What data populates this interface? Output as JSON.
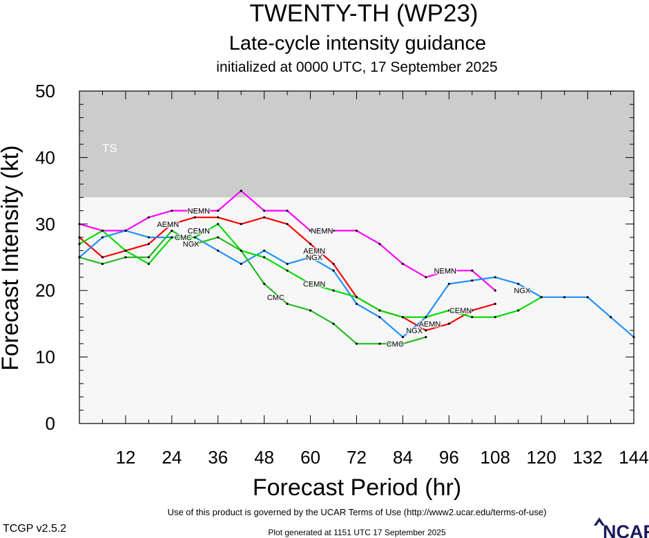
{
  "chart_data": {
    "type": "line",
    "title": "TWENTY-TH (WP23)",
    "subtitle": "Late-cycle intensity guidance",
    "initialized": "initialized at 0000 UTC, 17 September 2025",
    "xlabel": "Forecast Period (hr)",
    "ylabel": "Forecast Intensity (kt)",
    "xlim": [
      0,
      144
    ],
    "ylim": [
      0,
      50
    ],
    "x_ticks": [
      "12",
      "24",
      "36",
      "48",
      "60",
      "72",
      "84",
      "96",
      "108",
      "120",
      "132",
      "144"
    ],
    "y_ticks": [
      "0",
      "10",
      "20",
      "30",
      "40",
      "50"
    ],
    "bands": [
      {
        "label": "TS",
        "from": 34,
        "to": 50,
        "color": "#cccccc"
      },
      {
        "label": "",
        "from": 0,
        "to": 34,
        "color": "#f7f7f7"
      }
    ],
    "series": [
      {
        "name": "NEMN",
        "color": "#ff00ff",
        "x": [
          0,
          6,
          12,
          18,
          24,
          30,
          36,
          42,
          48,
          54,
          60,
          66,
          72,
          78,
          84,
          90,
          96,
          102,
          108
        ],
        "y": [
          30,
          29,
          29,
          31,
          32,
          32,
          32,
          35,
          32,
          32,
          29,
          29,
          29,
          27,
          24,
          22,
          23,
          23,
          20
        ],
        "labels": [
          {
            "x": 31,
            "y": 32
          },
          {
            "x": 63,
            "y": 29
          },
          {
            "x": 95,
            "y": 23
          }
        ]
      },
      {
        "name": "AEMN",
        "color": "#ff0000",
        "x": [
          0,
          6,
          12,
          18,
          24,
          30,
          36,
          42,
          48,
          54,
          60,
          66,
          72,
          78,
          84,
          90,
          96,
          102,
          108
        ],
        "y": [
          28,
          25,
          26,
          27,
          30,
          31,
          31,
          30,
          31,
          30,
          27,
          24,
          19,
          17,
          16,
          14,
          15,
          17,
          18
        ],
        "labels": [
          {
            "x": 23,
            "y": 30
          },
          {
            "x": 61,
            "y": 26
          },
          {
            "x": 91,
            "y": 15
          }
        ]
      },
      {
        "name": "NGX",
        "color": "#1e90ff",
        "x": [
          0,
          6,
          12,
          18,
          24,
          30,
          36,
          42,
          48,
          54,
          60,
          66,
          72,
          78,
          84,
          90,
          96,
          102,
          108,
          114,
          120,
          126,
          132,
          138,
          144
        ],
        "y": [
          25,
          28,
          29,
          28,
          28,
          28,
          26,
          24,
          26,
          24,
          25,
          23,
          18,
          16,
          13,
          16,
          21,
          21.5,
          22,
          21,
          19,
          19,
          19,
          16,
          13
        ],
        "labels": [
          {
            "x": 29,
            "y": 27
          },
          {
            "x": 61,
            "y": 25
          },
          {
            "x": 87,
            "y": 14
          },
          {
            "x": 115,
            "y": 20
          }
        ]
      },
      {
        "name": "CEMN",
        "color": "#00dd00",
        "x": [
          0,
          6,
          12,
          18,
          24,
          30,
          36,
          42,
          48,
          54,
          60,
          66,
          72,
          78,
          84,
          90,
          96,
          102,
          108,
          114,
          120
        ],
        "y": [
          27,
          29,
          26,
          24,
          28,
          28,
          30,
          26,
          25,
          23,
          21,
          20,
          19,
          17,
          16,
          16,
          17,
          16,
          16,
          17,
          19
        ],
        "labels": [
          {
            "x": 31,
            "y": 29
          },
          {
            "x": 61,
            "y": 21
          },
          {
            "x": 99,
            "y": 17
          }
        ]
      },
      {
        "name": "CMC",
        "color": "#22bb22",
        "x": [
          0,
          6,
          12,
          18,
          24,
          30,
          36,
          42,
          48,
          54,
          60,
          66,
          72,
          78,
          84,
          90
        ],
        "y": [
          25,
          24,
          25,
          25,
          29,
          27,
          28,
          26,
          21,
          18,
          17,
          15,
          12,
          12,
          12,
          13
        ],
        "labels": [
          {
            "x": 27,
            "y": 28
          },
          {
            "x": 51,
            "y": 19
          },
          {
            "x": 82,
            "y": 12
          }
        ]
      }
    ]
  },
  "footer": {
    "terms": "Use of this product is governed by the UCAR Terms of Use (http://www2.ucar.edu/terms-of-use)",
    "version": "TCGP v2.5.2",
    "generated": "Plot generated at 1151 UTC   17 September 2025",
    "logo_text": "NCAR"
  }
}
